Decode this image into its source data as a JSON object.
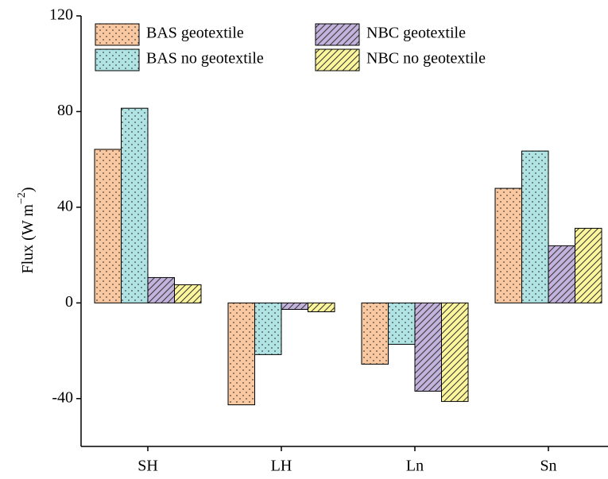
{
  "chart_data": {
    "type": "bar",
    "ylabel": [
      "Flux (W m",
      "−2",
      ")"
    ],
    "categories": [
      "SH",
      "LH",
      "Ln",
      "Sn"
    ],
    "series": [
      {
        "name": "BAS geotextile",
        "color": "#f9c8a0",
        "pattern": "dots",
        "values": [
          64.2,
          -42.6,
          -25.6,
          47.9
        ]
      },
      {
        "name": "BAS no geotextile",
        "color": "#b0e4e4",
        "pattern": "dots",
        "values": [
          81.4,
          -21.6,
          -17.3,
          63.5
        ]
      },
      {
        "name": "NBC geotextile",
        "color": "#c3b3dc",
        "pattern": "hatch",
        "values": [
          10.6,
          -2.7,
          -36.9,
          23.9
        ]
      },
      {
        "name": "NBC no geotextile",
        "color": "#fbf59c",
        "pattern": "hatch",
        "values": [
          7.6,
          -3.7,
          -41.2,
          31.2
        ]
      }
    ],
    "ylim": [
      -60,
      120
    ],
    "yticks": [
      -40,
      0,
      40,
      80,
      120
    ]
  }
}
